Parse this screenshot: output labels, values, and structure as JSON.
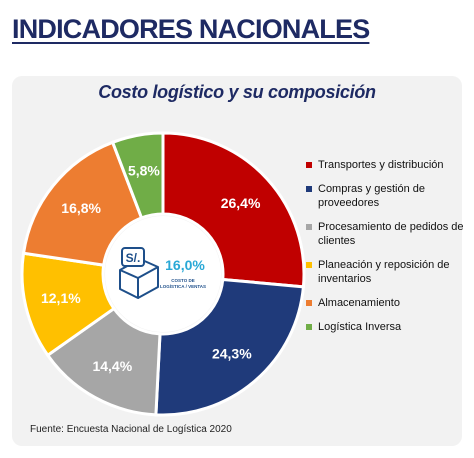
{
  "header": {
    "title": "INDICADORES NACIONALES"
  },
  "chart_data": {
    "type": "pie",
    "title": "Costo logístico y su composición",
    "center": {
      "icon_text": "S/.",
      "value": "16,0%",
      "label_line1": "COSTO DE",
      "label_line2": "LOGÍSTICA / VENTAS"
    },
    "slices": [
      {
        "label": "Transportes y distribución",
        "value": 26.4,
        "display": "26,4%",
        "color": "#c00000"
      },
      {
        "label": "Compras y gestión de proveedores",
        "value": 24.3,
        "display": "24,3%",
        "color": "#1f3a7a"
      },
      {
        "label": "Procesamiento de pedidos de clientes",
        "value": 14.4,
        "display": "14,4%",
        "color": "#a6a6a6"
      },
      {
        "label": "Planeación y reposición de inventarios",
        "value": 12.1,
        "display": "12,1%",
        "color": "#ffc000"
      },
      {
        "label": "Almacenamiento",
        "value": 16.8,
        "display": "16,8%",
        "color": "#ed7d31"
      },
      {
        "label": "Logística Inversa",
        "value": 5.8,
        "display": "5,8%",
        "color": "#70ad47"
      }
    ],
    "legend_position": "right"
  },
  "footer": {
    "source": "Fuente: Encuesta Nacional de Logística 2020"
  },
  "colors": {
    "title": "#1e2a63",
    "card_bg": "#f2f2f2",
    "center_value": "#29a8d6"
  }
}
